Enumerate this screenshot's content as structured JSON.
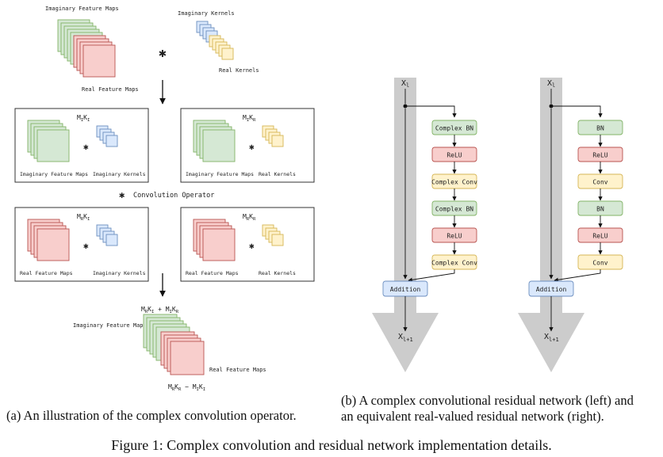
{
  "panel_a": {
    "top_imag_label": "Imaginary Feature Maps",
    "top_kernels_label": "Imaginary Kernels",
    "top_real_label": "Real Feature Maps",
    "top_real_kernels_label": "Real Kernels",
    "conv_symbol": "✱",
    "boxes": [
      {
        "title_main": "M",
        "title_sub1": "I",
        "title_main2": "K",
        "title_sub2": "I",
        "maps_label": "Imaginary Feature Maps",
        "kernels_label": "Imaginary Kernels",
        "maps_color": "green",
        "kernels_color": "blue"
      },
      {
        "title_main": "M",
        "title_sub1": "I",
        "title_main2": "K",
        "title_sub2": "R",
        "maps_label": "Imaginary Feature Maps",
        "kernels_label": "Real Kernels",
        "maps_color": "green",
        "kernels_color": "yellow"
      },
      {
        "title_main": "M",
        "title_sub1": "R",
        "title_main2": "K",
        "title_sub2": "I",
        "maps_label": "Real Feature Maps",
        "kernels_label": "Imaginary Kernels",
        "maps_color": "red",
        "kernels_color": "blue"
      },
      {
        "title_main": "M",
        "title_sub1": "R",
        "title_main2": "K",
        "title_sub2": "R",
        "maps_label": "Real Feature Maps",
        "kernels_label": "Real Kernels",
        "maps_color": "red",
        "kernels_color": "yellow"
      }
    ],
    "operator_legend": "Convolution Operator",
    "result_top_formula": "MRKI + MIKR",
    "result_imag_label": "Imaginary Feature Maps",
    "result_real_label": "Real Feature Maps",
    "result_bottom_formula": "MRKR − MIKI"
  },
  "panel_b": {
    "left": {
      "input_label": "X",
      "input_sub": "l",
      "output_label": "X",
      "output_sub": "l+1",
      "blocks": [
        {
          "label": "Complex BN",
          "color": "green"
        },
        {
          "label": "ReLU",
          "color": "red"
        },
        {
          "label": "Complex Conv",
          "color": "yellow"
        },
        {
          "label": "Complex BN",
          "color": "green"
        },
        {
          "label": "ReLU",
          "color": "red"
        },
        {
          "label": "Complex Conv",
          "color": "yellow"
        }
      ],
      "addition_label": "Addition"
    },
    "right": {
      "input_label": "X",
      "input_sub": "l",
      "output_label": "X",
      "output_sub": "l+1",
      "blocks": [
        {
          "label": "BN",
          "color": "green"
        },
        {
          "label": "ReLU",
          "color": "red"
        },
        {
          "label": "Conv",
          "color": "yellow"
        },
        {
          "label": "BN",
          "color": "green"
        },
        {
          "label": "ReLU",
          "color": "red"
        },
        {
          "label": "Conv",
          "color": "yellow"
        }
      ],
      "addition_label": "Addition"
    }
  },
  "captions": {
    "a": "(a) An illustration of the complex convolution operator.",
    "b_line1": "(b) A complex convolutional residual network (left) and",
    "b_line2": "an equivalent real-valued residual network (right).",
    "figure": "Figure 1: Complex convolution and residual network implementation details."
  },
  "colors": {
    "green_fill": "#d5e8d4",
    "green_stroke": "#82b366",
    "red_fill": "#f8cecc",
    "red_stroke": "#b85450",
    "blue_fill": "#dae8fc",
    "blue_stroke": "#6c8ebf",
    "yellow_fill": "#fff2cc",
    "yellow_stroke": "#d6b656",
    "arrow_gray": "#cccccc"
  }
}
